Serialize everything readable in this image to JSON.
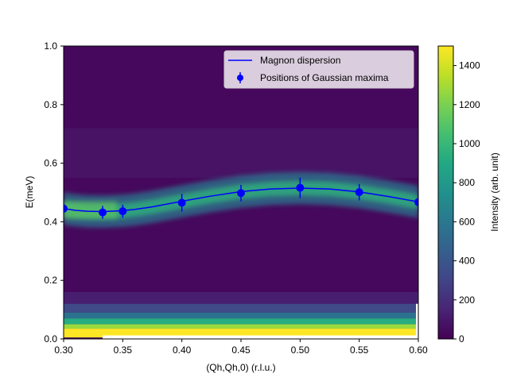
{
  "chart_data": [
    {
      "type": "heatmap",
      "xlabel": "(Qh,Qh,0) (r.l.u.)",
      "ylabel": "E(meV)",
      "xlim": [
        0.3,
        0.6
      ],
      "ylim": [
        0.0,
        1.0
      ],
      "xticks": [
        "0.30",
        "0.35",
        "0.40",
        "0.45",
        "0.50",
        "0.55",
        "0.60"
      ],
      "yticks": [
        "0.0",
        "0.2",
        "0.4",
        "0.6",
        "0.8",
        "1.0"
      ],
      "colormap": "viridis",
      "series": [
        {
          "name": "Magnon dispersion",
          "type": "line",
          "color": "#0000ff",
          "x": [
            0.3,
            0.31,
            0.32,
            0.333,
            0.34,
            0.35,
            0.36,
            0.375,
            0.4,
            0.425,
            0.45,
            0.475,
            0.5,
            0.525,
            0.55,
            0.575,
            0.6
          ],
          "y": [
            0.445,
            0.439,
            0.436,
            0.435,
            0.436,
            0.438,
            0.442,
            0.451,
            0.47,
            0.488,
            0.503,
            0.512,
            0.515,
            0.512,
            0.502,
            0.486,
            0.468
          ]
        },
        {
          "name": "Positions of Gaussian maxima",
          "type": "errorbar",
          "color": "#0000ff",
          "x": [
            0.3,
            0.333,
            0.35,
            0.4,
            0.45,
            0.5,
            0.55,
            0.6
          ],
          "y": [
            0.445,
            0.432,
            0.436,
            0.465,
            0.498,
            0.516,
            0.501,
            0.467
          ],
          "yerr": [
            0.015,
            0.022,
            0.022,
            0.03,
            0.028,
            0.035,
            0.028,
            0.03
          ]
        }
      ],
      "legend": {
        "position": "top-right"
      },
      "colorbar": {
        "label": "Intensity (arb. unit)",
        "range": [
          0,
          1500
        ],
        "ticks": [
          "0",
          "200",
          "400",
          "600",
          "800",
          "1000",
          "1200",
          "1400"
        ]
      }
    }
  ]
}
